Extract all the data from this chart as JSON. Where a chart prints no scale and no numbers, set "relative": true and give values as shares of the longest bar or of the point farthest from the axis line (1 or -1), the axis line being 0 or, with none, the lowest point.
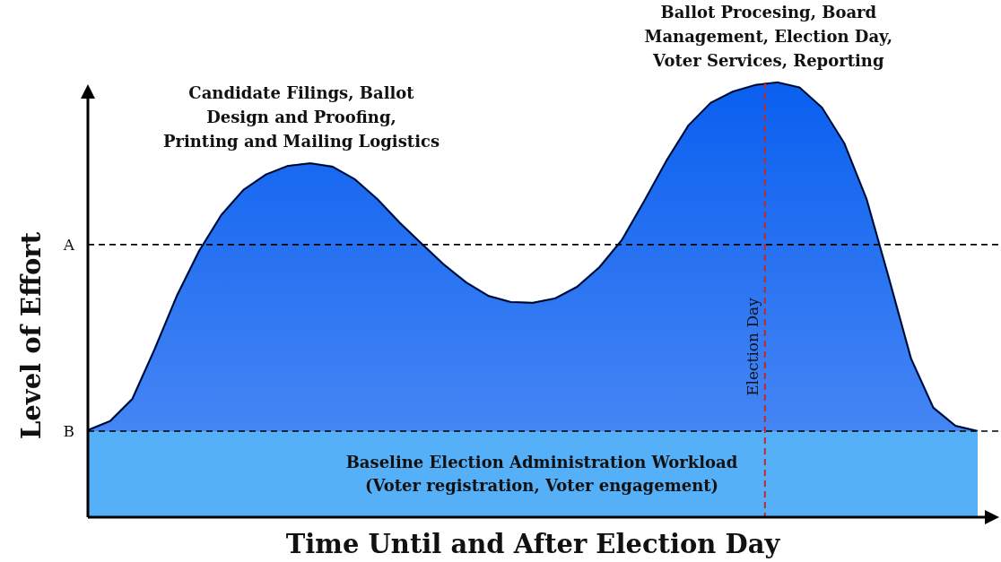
{
  "chart_data": {
    "type": "area",
    "relative": true,
    "xlabel": "Time Until and After Election Day",
    "ylabel": "Level of Effort",
    "categories": [
      null,
      null,
      null,
      null,
      null,
      null,
      null,
      null,
      null,
      null,
      null,
      null,
      null,
      null,
      null,
      null,
      null,
      null,
      null,
      null,
      null,
      null,
      null,
      null,
      null,
      null,
      null,
      null,
      null,
      null,
      null,
      null,
      null,
      null,
      null,
      null,
      null,
      null,
      null,
      null,
      null
    ],
    "series": [
      {
        "color": "#0a5ff0",
        "values": [
          0.2,
          0.221,
          0.272,
          0.386,
          0.509,
          0.612,
          0.695,
          0.753,
          0.788,
          0.808,
          0.814,
          0.806,
          0.777,
          0.732,
          0.678,
          0.629,
          0.581,
          0.54,
          0.509,
          0.495,
          0.493,
          0.503,
          0.53,
          0.575,
          0.637,
          0.726,
          0.819,
          0.901,
          0.953,
          0.979,
          0.994,
          1,
          0.988,
          0.942,
          0.86,
          0.732,
          0.551,
          0.365,
          0.252,
          0.21,
          0.198
        ]
      }
    ],
    "ref_lines": [
      {
        "axis": "y",
        "value": 0.627,
        "label": "A",
        "color": "#000000",
        "line_style": "dashed"
      },
      {
        "axis": "y",
        "value": 0.198,
        "label": "B",
        "color": "#000000",
        "line_style": "dashed"
      }
    ],
    "bands": [
      {
        "axis": "y",
        "from": 0,
        "to": 0.198,
        "label": "Baseline Election Administration Workload\n(Voter registration, Voter engagement)",
        "color": "#55b0f8"
      }
    ],
    "annotations": [
      "Candidate Filings, Ballot\nDesign and Proofing,\nPrinting and Mailing Logistics",
      "Ballot Procesing, Board\nManagement, Election Day,\nVoter Services, Reporting",
      "Election Day"
    ]
  }
}
